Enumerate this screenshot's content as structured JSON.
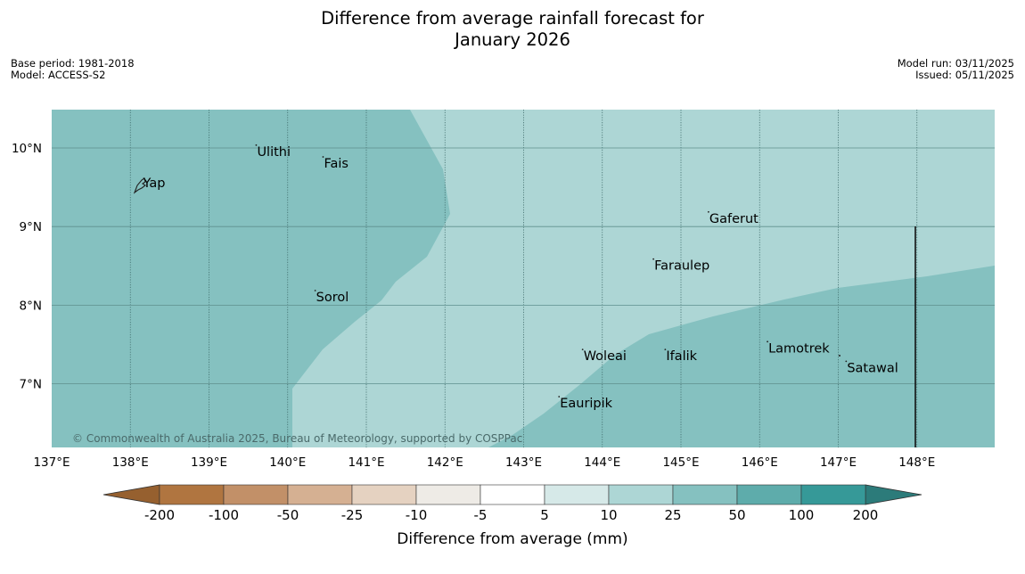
{
  "title": {
    "line1": "Difference from average rainfall forecast for",
    "line2": "January 2026"
  },
  "meta_left": {
    "base_period": "Base period: 1981-2018",
    "model": "Model: ACCESS-S2"
  },
  "meta_right": {
    "model_run": "Model run: 03/11/2025",
    "issued": "Issued: 05/11/2025"
  },
  "map": {
    "lon_range": [
      137,
      149
    ],
    "lat_range": [
      6.2,
      10.5
    ],
    "lon_ticks": [
      "137°E",
      "138°E",
      "139°E",
      "140°E",
      "141°E",
      "142°E",
      "143°E",
      "144°E",
      "145°E",
      "146°E",
      "147°E",
      "148°E"
    ],
    "lat_ticks": [
      "10°N",
      "9°N",
      "8°N",
      "7°N"
    ],
    "places": [
      {
        "name": "Yap",
        "lon": 138.15,
        "lat": 9.5
      },
      {
        "name": "Ulithi",
        "lon": 139.6,
        "lat": 9.9
      },
      {
        "name": "Fais",
        "lon": 140.45,
        "lat": 9.75
      },
      {
        "name": "Sorol",
        "lon": 140.35,
        "lat": 8.05
      },
      {
        "name": "Gaferut",
        "lon": 145.35,
        "lat": 9.05
      },
      {
        "name": "Faraulep",
        "lon": 144.65,
        "lat": 8.45
      },
      {
        "name": "Woleai",
        "lon": 143.75,
        "lat": 7.3
      },
      {
        "name": "Ifalik",
        "lon": 144.8,
        "lat": 7.3
      },
      {
        "name": "Lamotrek",
        "lon": 146.1,
        "lat": 7.4
      },
      {
        "name": "Satawal",
        "lon": 147.1,
        "lat": 7.15
      },
      {
        "name": "Eauripik",
        "lon": 143.45,
        "lat": 6.7
      }
    ],
    "colors": {
      "range_25_50": "#85c1c0",
      "range_10_25": "#add6d5",
      "land": "#ffffff"
    },
    "copyright": "© Commonwealth of Australia 2025, Bureau of Meteorology, supported by COSPPac"
  },
  "colorbar": {
    "title": "Difference from average (mm)",
    "tick_labels": [
      "-200",
      "-100",
      "-50",
      "-25",
      "-10",
      "-5",
      "5",
      "10",
      "25",
      "50",
      "100",
      "200"
    ],
    "bin_colors": [
      "#b07540",
      "#c29068",
      "#d5b092",
      "#e5d2c1",
      "#eeebe6",
      "#ffffff",
      "#d6e9e8",
      "#add6d5",
      "#85c1c0",
      "#5eacab",
      "#369998"
    ],
    "extend_low_color": "#96602f",
    "extend_high_color": "#2c7b7a"
  }
}
